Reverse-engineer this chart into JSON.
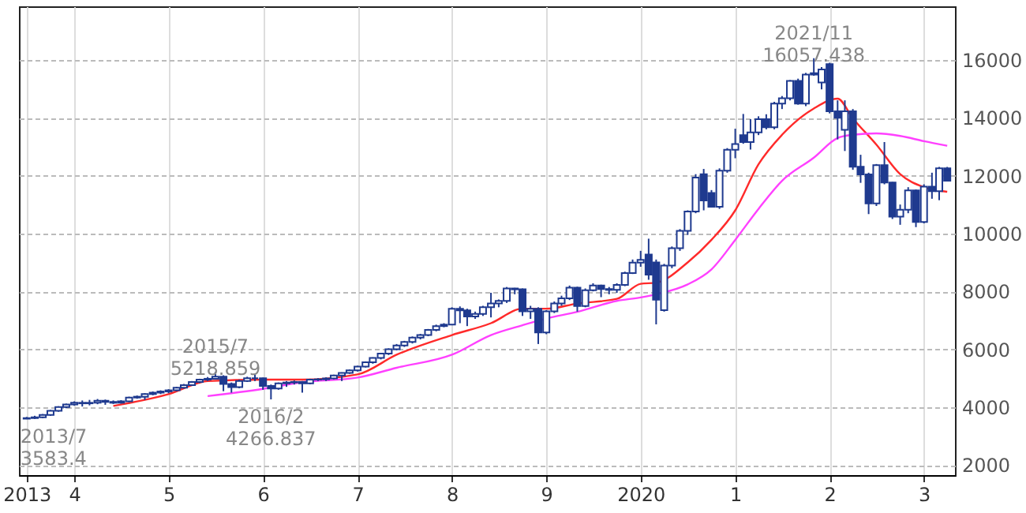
{
  "chart_data": {
    "type": "candlestick",
    "color": "#1f3a8f",
    "x": [
      "2013-07",
      "2013-08",
      "2013-09",
      "2013-10",
      "2013-11",
      "2013-12",
      "2014-01",
      "2014-02",
      "2014-03",
      "2014-04",
      "2014-05",
      "2014-06",
      "2014-07",
      "2014-08",
      "2014-09",
      "2014-10",
      "2014-11",
      "2014-12",
      "2015-01",
      "2015-02",
      "2015-03",
      "2015-04",
      "2015-05",
      "2015-06",
      "2015-07",
      "2015-08",
      "2015-09",
      "2015-10",
      "2015-11",
      "2015-12",
      "2016-01",
      "2016-02",
      "2016-03",
      "2016-04",
      "2016-05",
      "2016-06",
      "2016-07",
      "2016-08",
      "2016-09",
      "2016-10",
      "2016-11",
      "2016-12",
      "2017-01",
      "2017-02",
      "2017-03",
      "2017-04",
      "2017-05",
      "2017-06",
      "2017-07",
      "2017-08",
      "2017-09",
      "2017-10",
      "2017-11",
      "2017-12",
      "2018-01",
      "2018-02",
      "2018-03",
      "2018-04",
      "2018-05",
      "2018-06",
      "2018-07",
      "2018-08",
      "2018-09",
      "2018-10",
      "2018-11",
      "2018-12",
      "2019-01",
      "2019-02",
      "2019-03",
      "2019-04",
      "2019-05",
      "2019-06",
      "2019-07",
      "2019-08",
      "2019-09",
      "2019-10",
      "2019-11",
      "2019-12",
      "2020-01",
      "2020-02",
      "2020-03",
      "2020-04",
      "2020-05",
      "2020-06",
      "2020-07",
      "2020-08",
      "2020-09",
      "2020-10",
      "2020-11",
      "2020-12",
      "2021-01",
      "2021-02",
      "2021-03",
      "2021-04",
      "2021-05",
      "2021-06",
      "2021-07",
      "2021-08",
      "2021-09",
      "2021-10",
      "2021-11",
      "2021-12",
      "2022-01",
      "2022-02",
      "2022-03",
      "2022-04",
      "2022-05",
      "2022-06",
      "2022-07",
      "2022-08",
      "2022-09",
      "2022-10",
      "2022-11",
      "2022-12",
      "2023-01",
      "2023-02",
      "2023-03",
      "2023-04"
    ],
    "ohlc": [
      [
        3600,
        3660,
        3583.4,
        3620
      ],
      [
        3620,
        3700,
        3590,
        3650
      ],
      [
        3650,
        3760,
        3620,
        3730
      ],
      [
        3730,
        3900,
        3700,
        3870
      ],
      [
        3870,
        4030,
        3840,
        4000
      ],
      [
        4000,
        4120,
        3960,
        4090
      ],
      [
        4090,
        4200,
        4050,
        4150
      ],
      [
        4150,
        4230,
        4020,
        4130
      ],
      [
        4130,
        4250,
        4060,
        4150
      ],
      [
        4150,
        4280,
        4100,
        4220
      ],
      [
        4220,
        4260,
        4080,
        4180
      ],
      [
        4180,
        4230,
        4110,
        4150
      ],
      [
        4150,
        4240,
        4120,
        4200
      ],
      [
        4200,
        4360,
        4170,
        4330
      ],
      [
        4330,
        4400,
        4290,
        4360
      ],
      [
        4360,
        4480,
        4250,
        4450
      ],
      [
        4450,
        4540,
        4410,
        4500
      ],
      [
        4500,
        4580,
        4450,
        4540
      ],
      [
        4540,
        4620,
        4480,
        4580
      ],
      [
        4580,
        4700,
        4550,
        4670
      ],
      [
        4670,
        4800,
        4640,
        4760
      ],
      [
        4760,
        4900,
        4730,
        4870
      ],
      [
        4870,
        4980,
        4830,
        4950
      ],
      [
        4950,
        5040,
        4900,
        4980
      ],
      [
        4980,
        5218.859,
        4950,
        5050
      ],
      [
        5050,
        5100,
        4550,
        4800
      ],
      [
        4800,
        4850,
        4500,
        4690
      ],
      [
        4690,
        4950,
        4650,
        4900
      ],
      [
        4900,
        5050,
        4870,
        5000
      ],
      [
        5000,
        5120,
        4900,
        5000
      ],
      [
        5000,
        5020,
        4600,
        4730
      ],
      [
        4730,
        4780,
        4266.837,
        4640
      ],
      [
        4640,
        4850,
        4600,
        4820
      ],
      [
        4820,
        4900,
        4700,
        4850
      ],
      [
        4850,
        4920,
        4780,
        4870
      ],
      [
        4870,
        4900,
        4500,
        4820
      ],
      [
        4820,
        4980,
        4790,
        4950
      ],
      [
        4950,
        5000,
        4900,
        4960
      ],
      [
        4960,
        5030,
        4900,
        4990
      ],
      [
        4990,
        5120,
        4960,
        5090
      ],
      [
        5090,
        5200,
        4900,
        5180
      ],
      [
        5180,
        5300,
        5150,
        5270
      ],
      [
        5270,
        5430,
        5230,
        5400
      ],
      [
        5400,
        5580,
        5370,
        5550
      ],
      [
        5550,
        5720,
        5500,
        5700
      ],
      [
        5700,
        5870,
        5650,
        5850
      ],
      [
        5850,
        6030,
        5800,
        6000
      ],
      [
        6000,
        6180,
        5960,
        6130
      ],
      [
        6130,
        6290,
        6080,
        6250
      ],
      [
        6250,
        6440,
        6200,
        6400
      ],
      [
        6400,
        6530,
        6340,
        6490
      ],
      [
        6490,
        6700,
        6450,
        6670
      ],
      [
        6670,
        6850,
        6620,
        6800
      ],
      [
        6800,
        6900,
        6760,
        6850
      ],
      [
        6850,
        7450,
        6830,
        7400
      ],
      [
        7400,
        7480,
        6900,
        7340
      ],
      [
        7340,
        7400,
        6800,
        7130
      ],
      [
        7130,
        7300,
        7050,
        7220
      ],
      [
        7220,
        7500,
        7150,
        7450
      ],
      [
        7450,
        7950,
        7100,
        7580
      ],
      [
        7580,
        7720,
        7450,
        7670
      ],
      [
        7670,
        8150,
        7600,
        8100
      ],
      [
        8100,
        8120,
        7900,
        8070
      ],
      [
        8070,
        8100,
        7150,
        7310
      ],
      [
        7310,
        7500,
        7050,
        7400
      ],
      [
        7400,
        7450,
        6180,
        6580
      ],
      [
        6580,
        7350,
        6520,
        7310
      ],
      [
        7310,
        7650,
        7250,
        7580
      ],
      [
        7580,
        7850,
        7500,
        7760
      ],
      [
        7760,
        8200,
        7700,
        8130
      ],
      [
        8130,
        8160,
        7300,
        7490
      ],
      [
        7490,
        8100,
        7450,
        8040
      ],
      [
        8040,
        8280,
        8000,
        8200
      ],
      [
        8200,
        8230,
        7800,
        8080
      ],
      [
        8080,
        8150,
        7900,
        8050
      ],
      [
        8050,
        8280,
        7950,
        8220
      ],
      [
        8220,
        8680,
        8180,
        8630
      ],
      [
        8630,
        9100,
        8600,
        8990
      ],
      [
        8990,
        9400,
        8850,
        9090
      ],
      [
        9270,
        9820,
        8400,
        8580
      ],
      [
        9000,
        9100,
        6860,
        7710
      ],
      [
        7350,
        8950,
        7300,
        8890
      ],
      [
        8890,
        9550,
        8800,
        9490
      ],
      [
        9490,
        10150,
        9400,
        10090
      ],
      [
        10090,
        10800,
        9950,
        10760
      ],
      [
        10760,
        12050,
        10700,
        11930
      ],
      [
        12050,
        12230,
        10800,
        11140
      ],
      [
        11400,
        11500,
        10900,
        10920
      ],
      [
        10920,
        12250,
        10850,
        12170
      ],
      [
        12170,
        12950,
        12100,
        12890
      ],
      [
        12890,
        13620,
        12600,
        13090
      ],
      [
        13400,
        14130,
        13100,
        13160
      ],
      [
        13160,
        13950,
        12900,
        13490
      ],
      [
        13490,
        14050,
        13400,
        13950
      ],
      [
        13950,
        14120,
        13600,
        13670
      ],
      [
        13670,
        14550,
        13600,
        14490
      ],
      [
        14490,
        14750,
        14300,
        14670
      ],
      [
        14670,
        15300,
        14600,
        15270
      ],
      [
        15270,
        15350,
        14450,
        14490
      ],
      [
        14490,
        15550,
        14400,
        15490
      ],
      [
        15490,
        16057.438,
        15450,
        15540
      ],
      [
        15220,
        15750,
        14980,
        15670
      ],
      [
        15850,
        15900,
        14150,
        14220
      ],
      [
        14220,
        14600,
        13250,
        14000
      ],
      [
        13580,
        14600,
        12850,
        14220
      ],
      [
        14220,
        14300,
        12200,
        12310
      ],
      [
        12310,
        12720,
        11750,
        12040
      ],
      [
        12040,
        12100,
        10670,
        11040
      ],
      [
        11040,
        12400,
        10950,
        12360
      ],
      [
        12360,
        13160,
        11700,
        11760
      ],
      [
        11760,
        11780,
        10500,
        10580
      ],
      [
        10580,
        11000,
        10300,
        10820
      ],
      [
        10820,
        11600,
        10700,
        11490
      ],
      [
        11490,
        11520,
        10220,
        10400
      ],
      [
        10400,
        11700,
        10350,
        11620
      ],
      [
        11620,
        12100,
        11200,
        11460
      ],
      [
        11460,
        12300,
        11150,
        12250
      ],
      [
        12250,
        12300,
        11800,
        11820
      ]
    ],
    "series": [
      {
        "type": "line",
        "color": "#ff2a2a",
        "x": [
          "2014-06",
          "2015-01",
          "2015-06",
          "2016-01",
          "2016-06",
          "2017-01",
          "2017-06",
          "2018-01",
          "2018-06",
          "2018-10",
          "2019-01",
          "2019-05",
          "2019-10",
          "2020-01",
          "2020-03",
          "2020-07",
          "2020-10",
          "2021-01",
          "2021-04",
          "2021-07",
          "2021-11",
          "2022-02",
          "2022-04",
          "2022-07",
          "2022-10",
          "2023-01",
          "2023-04"
        ],
        "values": [
          4040,
          4450,
          4900,
          4950,
          4950,
          5130,
          5810,
          6490,
          6900,
          7400,
          7400,
          7580,
          7740,
          8260,
          8300,
          9000,
          9780,
          10800,
          12390,
          13410,
          14320,
          14660,
          13980,
          13070,
          12050,
          11600,
          11440
        ]
      },
      {
        "type": "line",
        "color": "#ff40ff",
        "x": [
          "2015-06",
          "2016-01",
          "2016-06",
          "2017-01",
          "2017-06",
          "2018-01",
          "2018-06",
          "2018-10",
          "2019-01",
          "2019-05",
          "2019-10",
          "2020-01",
          "2020-03",
          "2020-07",
          "2020-10",
          "2021-01",
          "2021-04",
          "2021-07",
          "2021-11",
          "2022-02",
          "2022-04",
          "2022-07",
          "2022-10",
          "2023-01",
          "2023-04"
        ],
        "values": [
          4380,
          4630,
          4860,
          5020,
          5360,
          5810,
          6490,
          6830,
          7060,
          7290,
          7670,
          7790,
          7900,
          8240,
          8760,
          9780,
          10850,
          11820,
          12620,
          13300,
          13410,
          13460,
          13370,
          13190,
          13030
        ]
      }
    ],
    "annotations": [
      {
        "text": "2013/7\n3583.4",
        "x": "2013-07",
        "y": 3583.4
      },
      {
        "text": "2015/7\n5218.859",
        "x": "2015-07",
        "y": 5218.859
      },
      {
        "text": "2016/2\n4266.837",
        "x": "2016-02",
        "y": 4266.837
      },
      {
        "text": "2021/11\n16057.438",
        "x": "2021-11",
        "y": 16057.438
      }
    ],
    "xlim": [
      "2013-06-01",
      "2023-05-01"
    ],
    "xticks": [
      {
        "value": "2013-07",
        "label": "2013"
      },
      {
        "value": "2014-01",
        "label": "4"
      },
      {
        "value": "2015-01",
        "label": "5"
      },
      {
        "value": "2016-01",
        "label": "6"
      },
      {
        "value": "2017-01",
        "label": "7"
      },
      {
        "value": "2018-01",
        "label": "8"
      },
      {
        "value": "2019-01",
        "label": "9"
      },
      {
        "value": "2020-01",
        "label": "2020"
      },
      {
        "value": "2021-01",
        "label": "1"
      },
      {
        "value": "2022-01",
        "label": "2"
      },
      {
        "value": "2023-01",
        "label": "3"
      }
    ],
    "ylim": [
      1650,
      17850
    ],
    "yticks": [
      2000,
      4000,
      6000,
      8000,
      10000,
      12000,
      14000,
      16000
    ],
    "grid": true
  }
}
